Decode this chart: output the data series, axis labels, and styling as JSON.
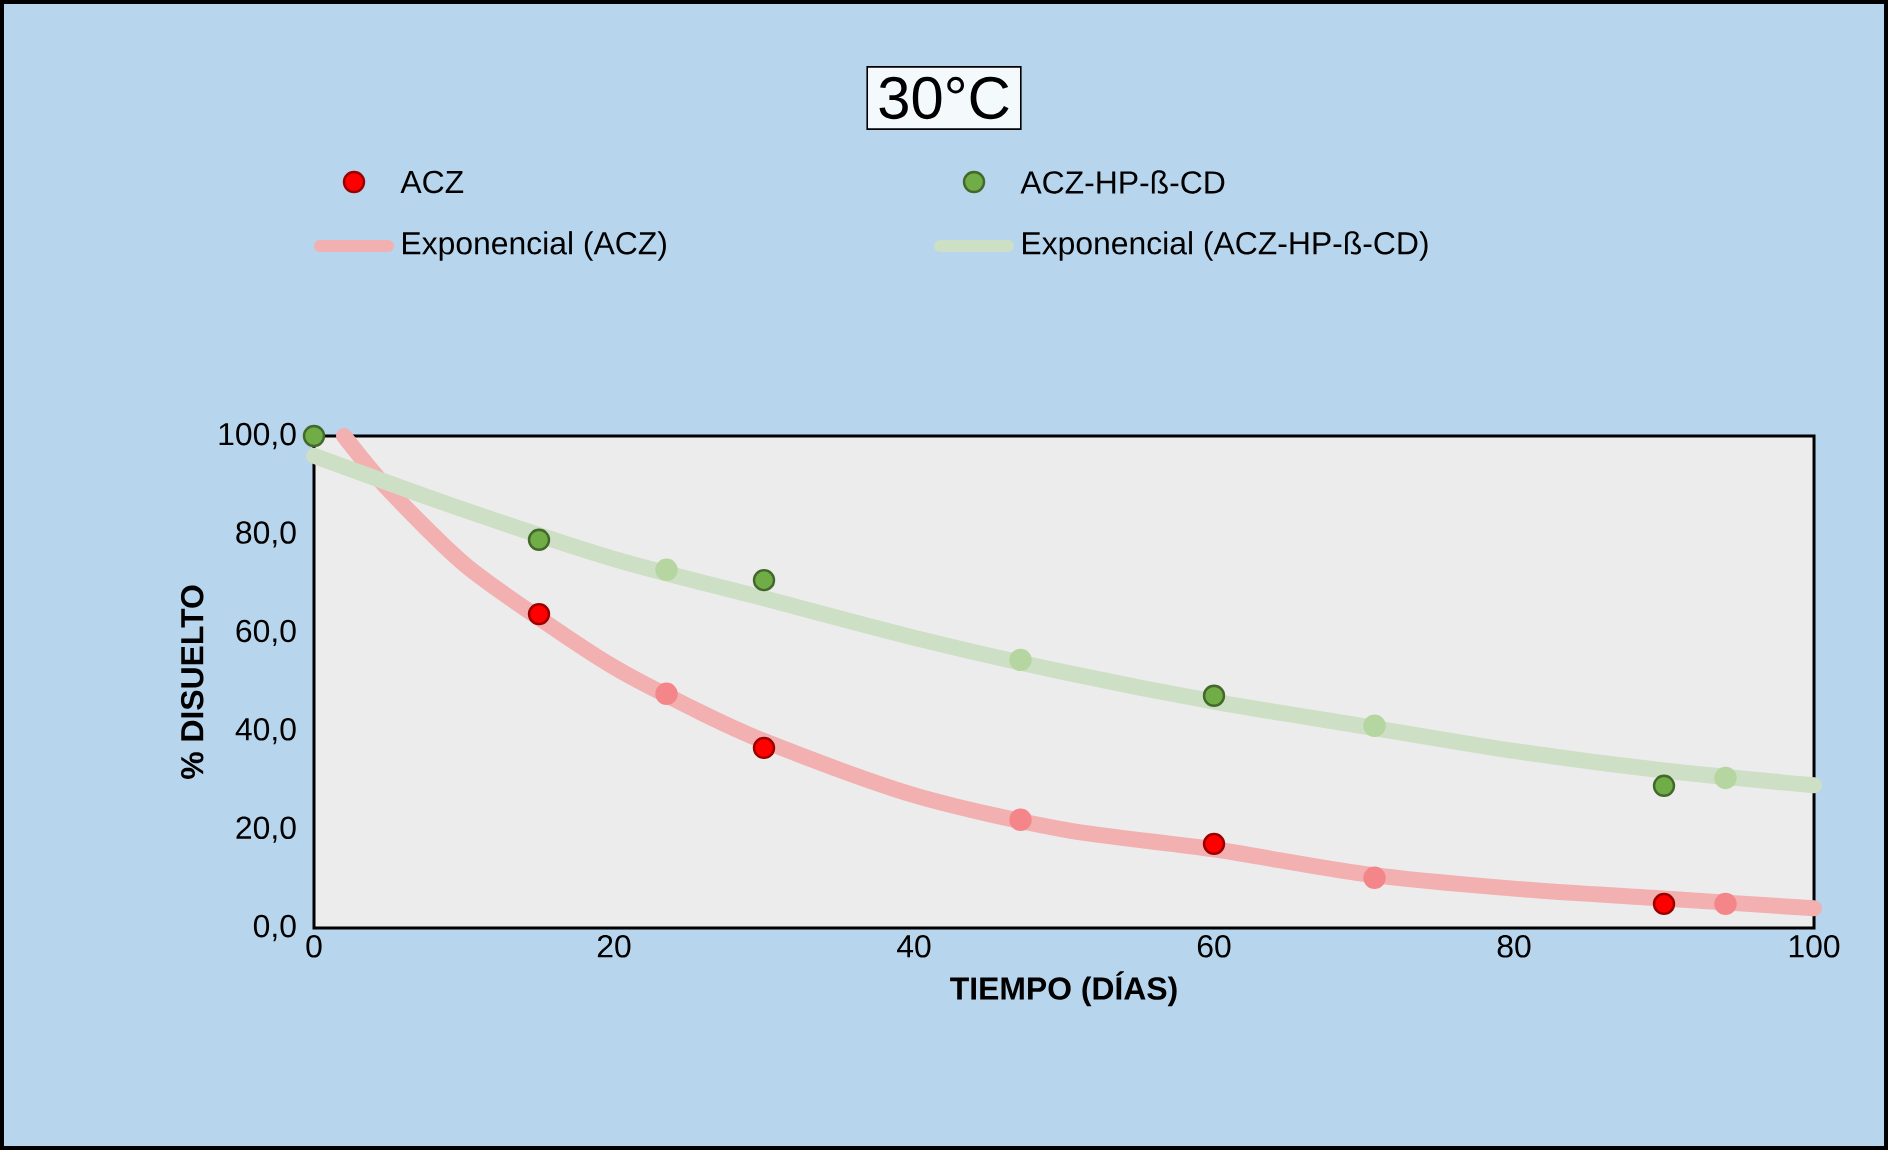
{
  "chart_data": {
    "type": "scatter",
    "title": "30°C",
    "xlabel": "TIEMPO (DÍAS)",
    "ylabel": "% DISUELTO",
    "xlim": [
      0,
      100
    ],
    "xticks": [
      0,
      20,
      40,
      60,
      80,
      100
    ],
    "ylim": [
      0,
      100
    ],
    "yticks": [
      {
        "value": 0,
        "label": "0,0"
      },
      {
        "value": 20,
        "label": "20,0"
      },
      {
        "value": 40,
        "label": "40,0"
      },
      {
        "value": 60,
        "label": "60,0"
      },
      {
        "value": 80,
        "label": "80,0"
      },
      {
        "value": 100,
        "label": "100,0"
      }
    ],
    "grid": false,
    "legend": "top",
    "series": [
      {
        "name": "ACZ",
        "color": "#ff0000",
        "marker": "circle",
        "x": [
          15,
          30,
          60,
          90
        ],
        "values": [
          63.8,
          36.6,
          17.1,
          4.9
        ]
      },
      {
        "name": "ACZ-HP-ß-CD",
        "color": "#70ad47",
        "marker": "circle",
        "x": [
          0,
          15,
          30,
          60,
          90
        ],
        "values": [
          100,
          78.9,
          70.7,
          47.2,
          28.9
        ]
      },
      {
        "name": "Exponencial (ACZ)",
        "type": "line",
        "marker": "none",
        "color": "#f2b0b0",
        "x": [
          2,
          5,
          10,
          15,
          20,
          25,
          30,
          40,
          50,
          60,
          70,
          80,
          90,
          100
        ],
        "values": [
          100,
          89,
          74,
          63,
          53,
          45,
          38,
          27,
          20,
          16,
          11,
          8,
          6,
          4
        ]
      },
      {
        "name": "Exponencial (ACZ-HP-ß-CD)",
        "type": "line",
        "marker": "none",
        "color": "#cddfc5",
        "x": [
          0,
          10,
          20,
          30,
          40,
          50,
          60,
          70,
          80,
          90,
          100
        ],
        "values": [
          96,
          85,
          75,
          67,
          59,
          52,
          46,
          41,
          36,
          32,
          29
        ]
      },
      {
        "color": "#f4868a",
        "marker": "circle",
        "x": [
          23.5,
          47.1,
          70.7,
          94.1
        ],
        "values": [
          47.6,
          22.0,
          10.2,
          4.9
        ]
      },
      {
        "color": "#b5d6a0",
        "marker": "circle",
        "x": [
          23.5,
          47.1,
          70.7,
          94.1
        ],
        "values": [
          72.8,
          54.5,
          41.1,
          30.5
        ]
      }
    ]
  }
}
